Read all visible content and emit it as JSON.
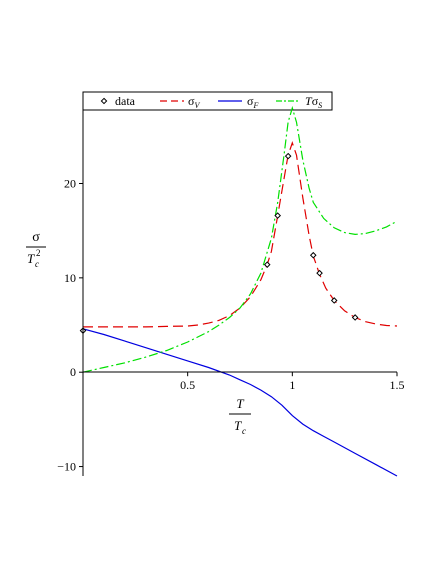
{
  "chart_data": {
    "type": "line",
    "xlim": [
      0,
      1.5
    ],
    "ylim": [
      -11,
      28
    ],
    "x_ticks": [
      0.5,
      1,
      1.5
    ],
    "x_tick_labels": [
      "0.5",
      "1",
      "1.5"
    ],
    "y_ticks": [
      -10,
      0,
      10,
      20
    ],
    "y_tick_labels": [
      "−10",
      "0",
      "10",
      "20"
    ],
    "xlabel": {
      "num": "T",
      "den": "T",
      "den_sub": "c"
    },
    "ylabel": {
      "num": "σ",
      "den": "T",
      "den_sub": "c",
      "den_sup": "2"
    },
    "legend_placement": "top",
    "legend": [
      {
        "key": "data",
        "label": "data"
      },
      {
        "key": "sigma_V",
        "label": "σ",
        "label_sub": "V"
      },
      {
        "key": "sigma_F",
        "label": "σ",
        "label_sub": "F"
      },
      {
        "key": "T_sigma_S",
        "label": "Tσ",
        "label_sub": "S"
      }
    ],
    "colors": {
      "data": "#000000",
      "sigma_V": "#e00000",
      "sigma_F": "#0000e0",
      "T_sigma_S": "#00e000"
    },
    "data_points": [
      {
        "x": 0.0,
        "y": 4.4
      },
      {
        "x": 0.88,
        "y": 11.4
      },
      {
        "x": 0.93,
        "y": 16.6
      },
      {
        "x": 0.98,
        "y": 22.9
      },
      {
        "x": 1.1,
        "y": 12.4
      },
      {
        "x": 1.13,
        "y": 10.5
      },
      {
        "x": 1.2,
        "y": 7.6
      },
      {
        "x": 1.3,
        "y": 5.8
      }
    ],
    "series": [
      {
        "key": "sigma_V",
        "style": "dashed",
        "x": [
          0,
          0.1,
          0.2,
          0.3,
          0.4,
          0.5,
          0.55,
          0.6,
          0.65,
          0.7,
          0.75,
          0.8,
          0.85,
          0.88,
          0.9,
          0.93,
          0.96,
          0.98,
          1.0,
          1.02,
          1.05,
          1.08,
          1.1,
          1.13,
          1.16,
          1.2,
          1.25,
          1.3,
          1.35,
          1.4,
          1.45,
          1.5
        ],
        "y": [
          4.8,
          4.8,
          4.8,
          4.8,
          4.85,
          4.9,
          5.0,
          5.2,
          5.5,
          6.0,
          6.8,
          8.0,
          9.8,
          11.4,
          12.8,
          16.6,
          20.5,
          23.0,
          24.3,
          23.0,
          18.5,
          14.5,
          12.3,
          10.4,
          8.9,
          7.6,
          6.5,
          5.8,
          5.35,
          5.1,
          4.95,
          4.9
        ]
      },
      {
        "key": "sigma_F",
        "style": "solid",
        "x": [
          0,
          0.1,
          0.2,
          0.3,
          0.4,
          0.5,
          0.6,
          0.7,
          0.75,
          0.8,
          0.85,
          0.9,
          0.95,
          1.0,
          1.05,
          1.1,
          1.15,
          1.2,
          1.3,
          1.4,
          1.5
        ],
        "y": [
          4.6,
          4.0,
          3.3,
          2.6,
          1.9,
          1.2,
          0.5,
          -0.3,
          -0.8,
          -1.3,
          -1.9,
          -2.6,
          -3.5,
          -4.6,
          -5.5,
          -6.2,
          -6.8,
          -7.4,
          -8.6,
          -9.8,
          -11.0
        ]
      },
      {
        "key": "T_sigma_S",
        "style": "dashdot",
        "x": [
          0,
          0.1,
          0.2,
          0.3,
          0.4,
          0.5,
          0.6,
          0.65,
          0.7,
          0.75,
          0.8,
          0.85,
          0.9,
          0.93,
          0.96,
          0.98,
          1.0,
          1.02,
          1.05,
          1.08,
          1.1,
          1.15,
          1.2,
          1.25,
          1.3,
          1.35,
          1.4,
          1.45,
          1.5
        ],
        "y": [
          0.0,
          0.5,
          1.0,
          1.6,
          2.3,
          3.2,
          4.3,
          5.0,
          5.8,
          6.8,
          8.3,
          10.5,
          14.2,
          18.0,
          23.0,
          26.5,
          28.0,
          26.5,
          22.5,
          19.5,
          18.0,
          16.3,
          15.3,
          14.8,
          14.6,
          14.7,
          15.0,
          15.4,
          16.0
        ]
      }
    ]
  }
}
